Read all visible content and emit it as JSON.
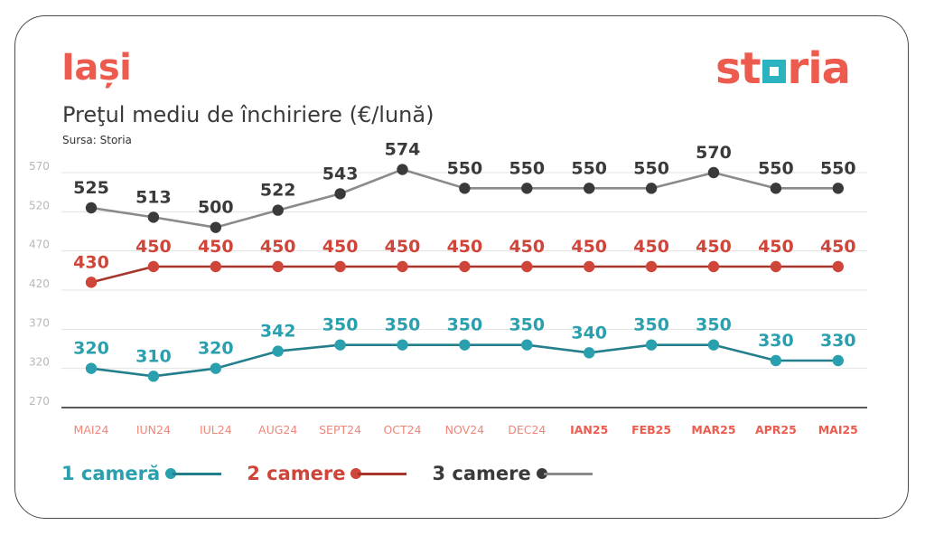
{
  "header": {
    "city": "Iași",
    "subtitle": "Preţul mediu de închiriere (€/lună)",
    "source": "Sursa: Storia",
    "logo_parts": [
      "st",
      "ria"
    ]
  },
  "colors": {
    "accent": "#ec5b4d",
    "series_1": "#2a9fad",
    "series_1_line": "#237f8b",
    "series_2": "#d0453a",
    "series_2_line": "#a8352c",
    "series_3": "#3a3a3a",
    "series_3_line": "#8a8a8a",
    "axis_label": "#f0867a",
    "grid": "#e3e3e3"
  },
  "chart_data": {
    "type": "line",
    "categories": [
      "MAI24",
      "IUN24",
      "IUL24",
      "AUG24",
      "SEPT24",
      "OCT24",
      "NOV24",
      "DEC24",
      "IAN25",
      "FEB25",
      "MAR25",
      "APR25",
      "MAI25"
    ],
    "bold_categories": [
      "IAN25",
      "FEB25",
      "MAR25",
      "APR25",
      "MAI25"
    ],
    "yticks": [
      270,
      320,
      370,
      420,
      470,
      520,
      570
    ],
    "ylim": [
      270,
      570
    ],
    "grid": true,
    "legend_position": "bottom-left",
    "series": [
      {
        "name": "1 cameră",
        "values": [
          320,
          310,
          320,
          342,
          350,
          350,
          350,
          350,
          340,
          350,
          350,
          330,
          330
        ]
      },
      {
        "name": "2 camere",
        "values": [
          430,
          450,
          450,
          450,
          450,
          450,
          450,
          450,
          450,
          450,
          450,
          450,
          450
        ]
      },
      {
        "name": "3 camere",
        "values": [
          525,
          513,
          500,
          522,
          543,
          574,
          550,
          550,
          550,
          550,
          570,
          550,
          550
        ]
      }
    ]
  }
}
